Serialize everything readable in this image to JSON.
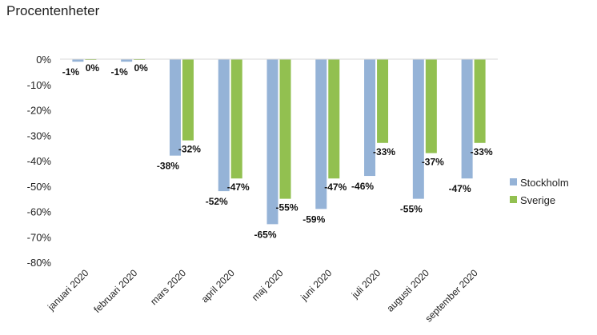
{
  "chart_data": {
    "type": "bar",
    "title": "",
    "subtitle": "Procentenheter",
    "xlabel": "",
    "ylabel": "",
    "categories": [
      "januari 2020",
      "februari 2020",
      "mars 2020",
      "april 2020",
      "maj 2020",
      "juni 2020",
      "juli 2020",
      "augusti 2020",
      "september 2020"
    ],
    "series": [
      {
        "name": "Stockholm",
        "color": "#95b3d7",
        "values": [
          -1,
          -1,
          -38,
          -52,
          -65,
          -59,
          -46,
          -55,
          -47
        ],
        "labels": [
          "-1%",
          "-1%",
          "-38%",
          "-52%",
          "-65%",
          "-59%",
          "-46%",
          "-55%",
          "-47%"
        ]
      },
      {
        "name": "Sverige",
        "color": "#92c050",
        "values": [
          0,
          0,
          -32,
          -47,
          -55,
          -47,
          -33,
          -37,
          -33
        ],
        "labels": [
          "0%",
          "0%",
          "-32%",
          "-47%",
          "-55%",
          "-47%",
          "-33%",
          "-37%",
          "-33%"
        ]
      }
    ],
    "ylim": [
      -80,
      0
    ],
    "yticks": [
      0,
      -10,
      -20,
      -30,
      -40,
      -50,
      -60,
      -70,
      -80
    ],
    "ytick_labels": [
      "0%",
      "-10%",
      "-20%",
      "-30%",
      "-40%",
      "-50%",
      "-60%",
      "-70%",
      "-80%"
    ],
    "grid": false,
    "legend_position": "right"
  }
}
